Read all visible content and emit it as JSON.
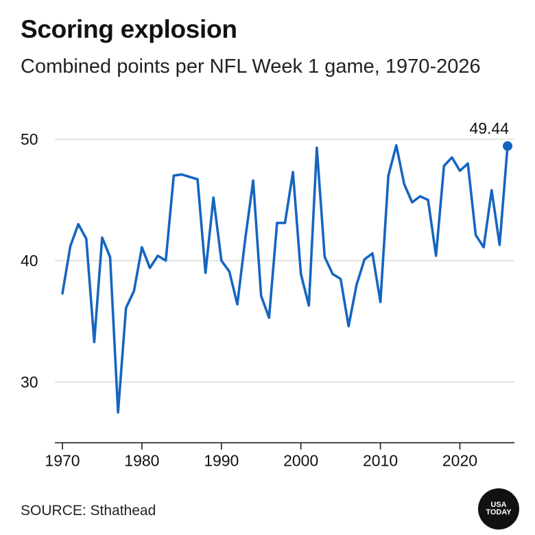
{
  "header": {
    "title": "Scoring explosion",
    "subtitle": "Combined points per NFL Week 1 game, 1970-2026"
  },
  "footer": {
    "source": "SOURCE: Sthathead",
    "logo_line1": "USA",
    "logo_line2": "TODAY"
  },
  "chart_data": {
    "type": "line",
    "title": "Scoring explosion",
    "subtitle": "Combined points per NFL Week 1 game, 1970-2026",
    "xlabel": "",
    "ylabel": "",
    "xlim": [
      1970,
      2026
    ],
    "ylim": [
      25,
      52
    ],
    "y_ticks": [
      30,
      40,
      50
    ],
    "x_ticks": [
      1970,
      1980,
      1990,
      2000,
      2010,
      2020
    ],
    "grid": true,
    "line_color": "#1565c0",
    "annotation": {
      "x": 2026,
      "y": 49.44,
      "label": "49.44"
    },
    "x": [
      1970,
      1971,
      1972,
      1973,
      1974,
      1975,
      1976,
      1977,
      1978,
      1979,
      1980,
      1981,
      1982,
      1983,
      1984,
      1985,
      1986,
      1987,
      1988,
      1989,
      1990,
      1991,
      1992,
      1993,
      1994,
      1995,
      1996,
      1997,
      1998,
      1999,
      2000,
      2001,
      2002,
      2003,
      2004,
      2005,
      2006,
      2007,
      2008,
      2009,
      2010,
      2011,
      2012,
      2013,
      2014,
      2015,
      2016,
      2017,
      2018,
      2019,
      2020,
      2021,
      2022,
      2023,
      2024,
      2025,
      2026
    ],
    "y": [
      37.3,
      41.2,
      43.0,
      41.8,
      33.3,
      41.9,
      40.3,
      27.5,
      36.1,
      37.5,
      41.1,
      39.4,
      40.4,
      40.0,
      47.0,
      47.1,
      46.9,
      46.7,
      39.0,
      45.2,
      40.0,
      39.1,
      36.4,
      41.8,
      46.6,
      37.1,
      35.3,
      43.1,
      43.1,
      47.3,
      38.9,
      36.3,
      49.3,
      40.3,
      38.9,
      38.5,
      34.6,
      38.0,
      40.1,
      40.6,
      36.6,
      47.0,
      49.5,
      46.3,
      44.8,
      45.3,
      45.0,
      40.4,
      47.8,
      48.5,
      47.4,
      48.0,
      42.1,
      41.1,
      45.8,
      41.3,
      49.44
    ]
  }
}
